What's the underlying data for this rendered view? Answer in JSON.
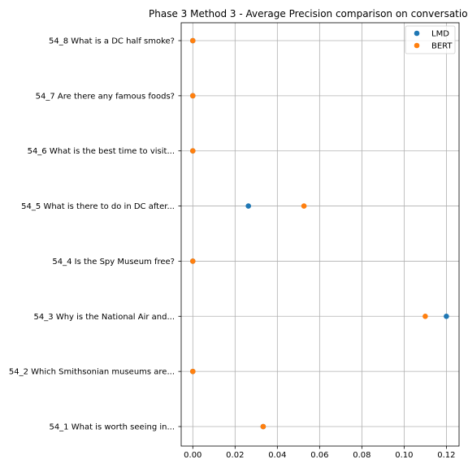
{
  "chart_data": {
    "type": "scatter",
    "title": "Phase 3 Method 3 - Average Precision comparison on conversatio",
    "xlabel": "",
    "ylabel": "",
    "categories": [
      "54_1 What is worth seeing in...",
      "54_2 Which Smithsonian museums are...",
      "54_3 Why is the National Air and...",
      "54_4 Is the Spy Museum free?",
      "54_5 What is there to do in DC after...",
      "54_6 What is the best time to visit...",
      "54_7 Are there any famous foods?",
      "54_8 What is a DC half smoke?"
    ],
    "xlim": [
      -0.0055,
      0.126
    ],
    "xticks": [
      0.0,
      0.02,
      0.04,
      0.06,
      0.08,
      0.1,
      0.12
    ],
    "xtick_labels": [
      "0.00",
      "0.02",
      "0.04",
      "0.06",
      "0.08",
      "0.10",
      "0.12"
    ],
    "grid": true,
    "legend_position": "top-right",
    "series": [
      {
        "name": "LMD",
        "color": "#1f77b4",
        "values": [
          0.0333,
          0.0,
          0.12,
          0.0,
          0.0263,
          0.0,
          0.0,
          0.0
        ]
      },
      {
        "name": "BERT",
        "color": "#ff7f0e",
        "values": [
          0.0333,
          0.0,
          0.11,
          0.0,
          0.0526,
          0.0,
          0.0,
          0.0
        ]
      }
    ]
  }
}
